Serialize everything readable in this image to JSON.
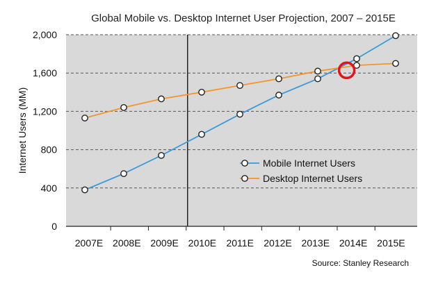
{
  "chart_data": {
    "type": "line",
    "title": "Global Mobile vs. Desktop Internet User Projection, 2007 – 2015E",
    "xlabel": "",
    "ylabel": "Internet Users (MM)",
    "categories": [
      "2007E",
      "2008E",
      "2009E",
      "2010E",
      "2011E",
      "2012E",
      "2013E",
      "2014E",
      "2015E"
    ],
    "ylim": [
      0,
      2000
    ],
    "yticks": [
      0,
      400,
      800,
      1200,
      1600,
      2000
    ],
    "ytick_labels": [
      "0",
      "400",
      "800",
      "1,200",
      "1,600",
      "2,000"
    ],
    "grid": "horizontal-dashed",
    "series": [
      {
        "name": "Mobile Internet Users",
        "color": "#3a9ad9",
        "x": [
          0,
          1,
          2,
          3,
          4,
          5,
          6,
          7,
          8
        ],
        "values": [
          380,
          550,
          740,
          960,
          1170,
          1370,
          1540,
          1750,
          1990
        ]
      },
      {
        "name": "Desktop Internet Users",
        "color": "#f0962b",
        "x": [
          0,
          1,
          2,
          3,
          4,
          5,
          6,
          7,
          8
        ],
        "values": [
          1130,
          1240,
          1330,
          1400,
          1470,
          1540,
          1620,
          1680,
          1700
        ]
      }
    ],
    "annotations": {
      "divider_after": "2009E",
      "crossover_year_fraction": 6.6,
      "crossover_value": 1650,
      "highlight_color": "#e8121c"
    },
    "legend_position": "center-right",
    "source": "Source: Stanley Research"
  }
}
